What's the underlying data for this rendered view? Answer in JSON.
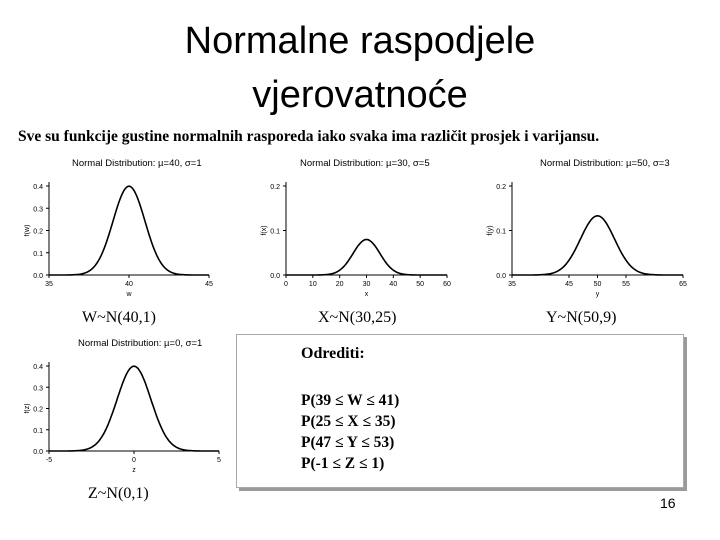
{
  "slide": {
    "title_line1": "Normalne raspodjele",
    "title_line2": "vjerovatnoće",
    "subtitle": "Sve su funkcije gustine normalnih rasporeda iako svaka ima različit prosjek i varijansu.",
    "page_number": "16"
  },
  "labels": {
    "w": "W~N(40,1)",
    "x": "X~N(30,25)",
    "y": "Y~N(50,9)",
    "z": "Z~N(0,1)"
  },
  "tasks": {
    "heading": "Odrediti:",
    "items": [
      "P(39 ≤ W ≤ 41)",
      "P(25 ≤ X ≤ 35)",
      "P(47 ≤ Y ≤ 53)",
      "P(-1 ≤ Z ≤ 1)"
    ]
  },
  "chart_data": [
    {
      "type": "line",
      "title": "Normal Distribution: µ=40, σ=1",
      "mu": 40,
      "sigma": 1,
      "xlabel": "w",
      "ylabel": "f(w)",
      "xlim": [
        35,
        45
      ],
      "ylim": [
        0,
        0.4
      ],
      "xticks": [
        35,
        40,
        45
      ],
      "xtick_labels": [
        "35",
        "40",
        "45"
      ],
      "yticks": [
        0,
        0.1,
        0.2,
        0.3,
        0.4
      ],
      "ytick_labels": [
        "0.0",
        "0.1",
        "0.2",
        "0.3",
        "0.4"
      ]
    },
    {
      "type": "line",
      "title": "Normal Distribution: µ=30, σ=5",
      "mu": 30,
      "sigma": 5,
      "xlabel": "x",
      "ylabel": "f(x)",
      "xlim": [
        0,
        60
      ],
      "ylim": [
        0,
        0.2
      ],
      "xticks": [
        0,
        10,
        20,
        30,
        40,
        50,
        60
      ],
      "xtick_labels": [
        "0",
        "10",
        "20",
        "30",
        "40",
        "50",
        "60"
      ],
      "yticks": [
        0,
        0.1,
        0.2
      ],
      "ytick_labels": [
        "0.0",
        "0.1",
        "0.2"
      ]
    },
    {
      "type": "line",
      "title": "Normal Distribution: µ=50, σ=3",
      "mu": 50,
      "sigma": 3,
      "xlabel": "y",
      "ylabel": "f(y)",
      "xlim": [
        35,
        65
      ],
      "ylim": [
        0,
        0.2
      ],
      "xticks": [
        35,
        45,
        50,
        55,
        65
      ],
      "xtick_labels": [
        "35",
        "45",
        "50",
        "55",
        "65"
      ],
      "yticks": [
        0,
        0.1,
        0.2
      ],
      "ytick_labels": [
        "0.0",
        "0.1",
        "0.2"
      ]
    },
    {
      "type": "line",
      "title": "Normal Distribution: µ=0, σ=1",
      "mu": 0,
      "sigma": 1,
      "xlabel": "z",
      "ylabel": "f(z)",
      "xlim": [
        -5,
        5
      ],
      "ylim": [
        0,
        0.4
      ],
      "xticks": [
        -5,
        0,
        5
      ],
      "xtick_labels": [
        "-5",
        "0",
        "5"
      ],
      "yticks": [
        0,
        0.1,
        0.2,
        0.3,
        0.4
      ],
      "ytick_labels": [
        "0.0",
        "0.1",
        "0.2",
        "0.3",
        "0.4"
      ]
    }
  ]
}
